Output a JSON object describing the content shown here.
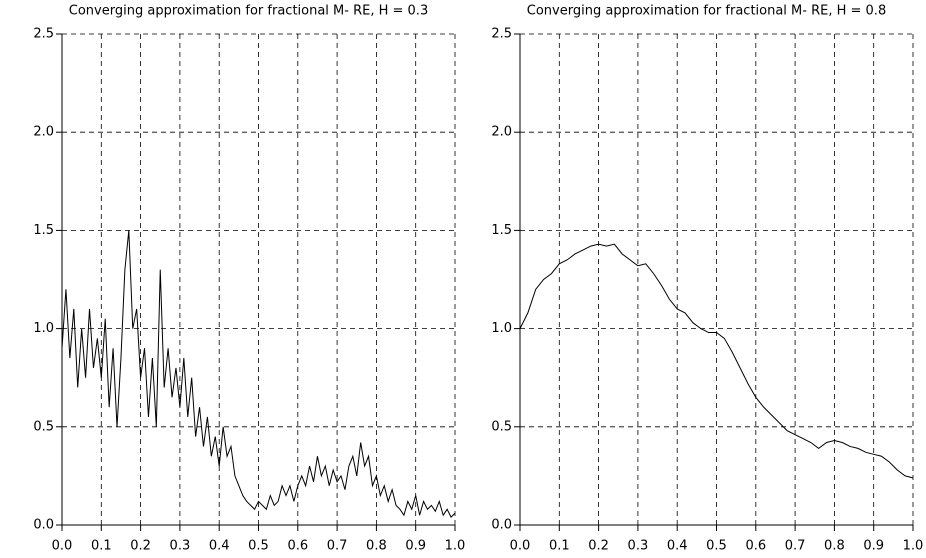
{
  "chart_data": [
    {
      "type": "line",
      "title": "Converging approximation for fractional M- RE, H = 0.3",
      "grid": true,
      "xlim": [
        0,
        1
      ],
      "ylim": [
        0,
        2.5
      ],
      "xticks": [
        {
          "value": 0,
          "label": "0.0"
        },
        0.1,
        0.2,
        0.3,
        0.4,
        0.5,
        0.6,
        0.7,
        0.8,
        0.9,
        {
          "value": 1,
          "label": "1.0"
        }
      ],
      "yticks": [
        {
          "value": 0,
          "label": "0.0"
        },
        0.5,
        {
          "value": 1,
          "label": "1.0"
        },
        1.5,
        {
          "value": 2,
          "label": "2.0"
        },
        2.5
      ],
      "series": [
        {
          "color": "#000000",
          "x": [
            0,
            0.01,
            0.02,
            0.03,
            0.04,
            0.05,
            0.06,
            0.07,
            0.08,
            0.09,
            0.1,
            0.11,
            0.12,
            0.13,
            0.14,
            0.15,
            0.16,
            0.17,
            0.18,
            0.19,
            0.2,
            0.21,
            0.22,
            0.23,
            0.24,
            0.25,
            0.26,
            0.27,
            0.28,
            0.29,
            0.3,
            0.31,
            0.32,
            0.33,
            0.34,
            0.35,
            0.36,
            0.37,
            0.38,
            0.39,
            0.4,
            0.41,
            0.42,
            0.43,
            0.44,
            0.45,
            0.46,
            0.47,
            0.48,
            0.49,
            0.5,
            0.51,
            0.52,
            0.53,
            0.54,
            0.55,
            0.56,
            0.57,
            0.58,
            0.59,
            0.6,
            0.61,
            0.62,
            0.63,
            0.64,
            0.65,
            0.66,
            0.67,
            0.68,
            0.69,
            0.7,
            0.71,
            0.72,
            0.73,
            0.74,
            0.75,
            0.76,
            0.77,
            0.78,
            0.79,
            0.8,
            0.81,
            0.82,
            0.83,
            0.84,
            0.85,
            0.86,
            0.87,
            0.88,
            0.89,
            0.9,
            0.91,
            0.92,
            0.93,
            0.94,
            0.95,
            0.96,
            0.97,
            0.98,
            0.99,
            1
          ],
          "values": [
            0.9,
            1.2,
            0.85,
            1.1,
            0.7,
            1.0,
            0.75,
            1.1,
            0.8,
            0.95,
            0.75,
            1.05,
            0.6,
            0.9,
            0.5,
            0.85,
            1.3,
            1.5,
            1.0,
            1.1,
            0.75,
            0.9,
            0.55,
            0.85,
            0.5,
            1.3,
            0.7,
            0.9,
            0.65,
            0.8,
            0.6,
            0.85,
            0.55,
            0.75,
            0.45,
            0.6,
            0.4,
            0.55,
            0.35,
            0.45,
            0.3,
            0.5,
            0.35,
            0.4,
            0.25,
            0.2,
            0.15,
            0.12,
            0.1,
            0.08,
            0.12,
            0.1,
            0.08,
            0.15,
            0.1,
            0.12,
            0.2,
            0.15,
            0.2,
            0.12,
            0.2,
            0.25,
            0.2,
            0.3,
            0.22,
            0.35,
            0.25,
            0.3,
            0.2,
            0.28,
            0.22,
            0.25,
            0.18,
            0.3,
            0.35,
            0.25,
            0.42,
            0.3,
            0.35,
            0.2,
            0.25,
            0.15,
            0.2,
            0.12,
            0.18,
            0.1,
            0.08,
            0.05,
            0.12,
            0.08,
            0.15,
            0.05,
            0.12,
            0.08,
            0.1,
            0.07,
            0.12,
            0.05,
            0.08,
            0.04,
            0.06
          ]
        }
      ]
    },
    {
      "type": "line",
      "title": "Converging approximation for fractional M- RE, H = 0.8",
      "grid": true,
      "xlim": [
        0,
        1
      ],
      "ylim": [
        0,
        2.5
      ],
      "xticks": [
        {
          "value": 0,
          "label": "0.0"
        },
        0.1,
        0.2,
        0.3,
        0.4,
        0.5,
        0.6,
        0.7,
        0.8,
        0.9,
        {
          "value": 1,
          "label": "1.0"
        }
      ],
      "yticks": [
        {
          "value": 0,
          "label": "0.0"
        },
        0.5,
        {
          "value": 1,
          "label": "1.0"
        },
        1.5,
        {
          "value": 2,
          "label": "2.0"
        },
        2.5
      ],
      "series": [
        {
          "color": "#000000",
          "x": [
            0,
            0.02,
            0.04,
            0.06,
            0.08,
            0.1,
            0.12,
            0.14,
            0.16,
            0.18,
            0.2,
            0.22,
            0.24,
            0.26,
            0.28,
            0.3,
            0.32,
            0.34,
            0.36,
            0.38,
            0.4,
            0.42,
            0.44,
            0.46,
            0.48,
            0.5,
            0.52,
            0.54,
            0.56,
            0.58,
            0.6,
            0.62,
            0.64,
            0.66,
            0.68,
            0.7,
            0.72,
            0.74,
            0.76,
            0.78,
            0.8,
            0.82,
            0.84,
            0.86,
            0.88,
            0.9,
            0.92,
            0.94,
            0.96,
            0.98,
            1
          ],
          "values": [
            1.0,
            1.08,
            1.2,
            1.25,
            1.28,
            1.33,
            1.35,
            1.38,
            1.4,
            1.42,
            1.43,
            1.42,
            1.43,
            1.38,
            1.35,
            1.32,
            1.33,
            1.28,
            1.22,
            1.15,
            1.1,
            1.08,
            1.03,
            1.0,
            0.98,
            0.98,
            0.95,
            0.88,
            0.8,
            0.72,
            0.65,
            0.6,
            0.56,
            0.52,
            0.48,
            0.46,
            0.44,
            0.42,
            0.39,
            0.42,
            0.43,
            0.42,
            0.4,
            0.39,
            0.37,
            0.36,
            0.35,
            0.32,
            0.28,
            0.25,
            0.24
          ]
        }
      ]
    }
  ]
}
